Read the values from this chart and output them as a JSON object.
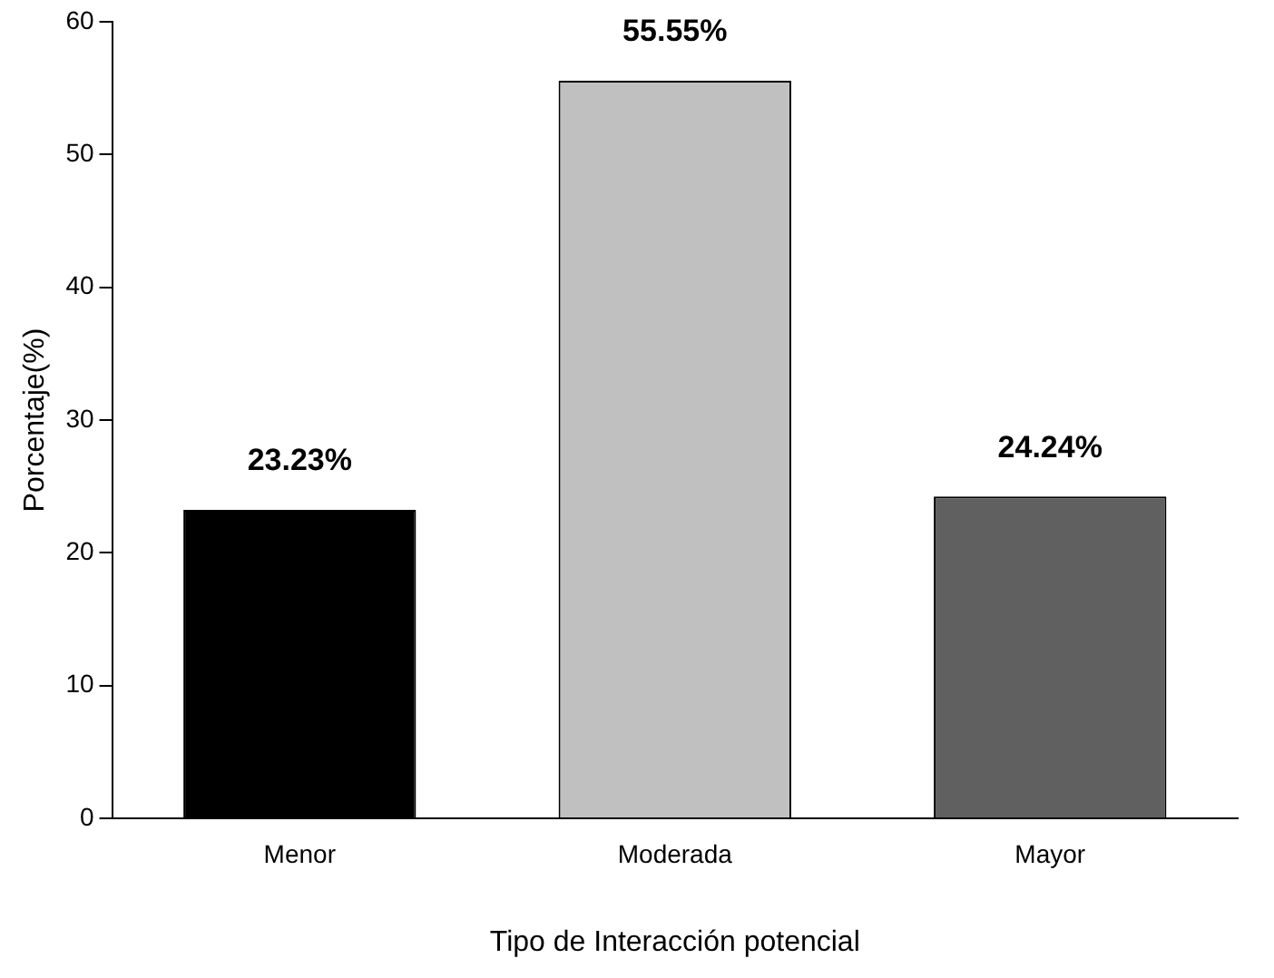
{
  "chart_data": {
    "type": "bar",
    "xlabel": "Tipo de Interacción potencial",
    "ylabel": "Porcentaje(%)",
    "categories": [
      "Menor",
      "Moderada",
      "Mayor"
    ],
    "values": [
      23.23,
      55.55,
      24.24
    ],
    "colors": [
      "#000000",
      "#c0c0c0",
      "#606060"
    ],
    "value_labels": [
      "23.23%",
      "55.55%",
      "24.24%"
    ],
    "ylim": [
      0,
      60
    ],
    "yticks": [
      0,
      10,
      20,
      30,
      40,
      50,
      60
    ],
    "grid": false,
    "legend": false
  }
}
